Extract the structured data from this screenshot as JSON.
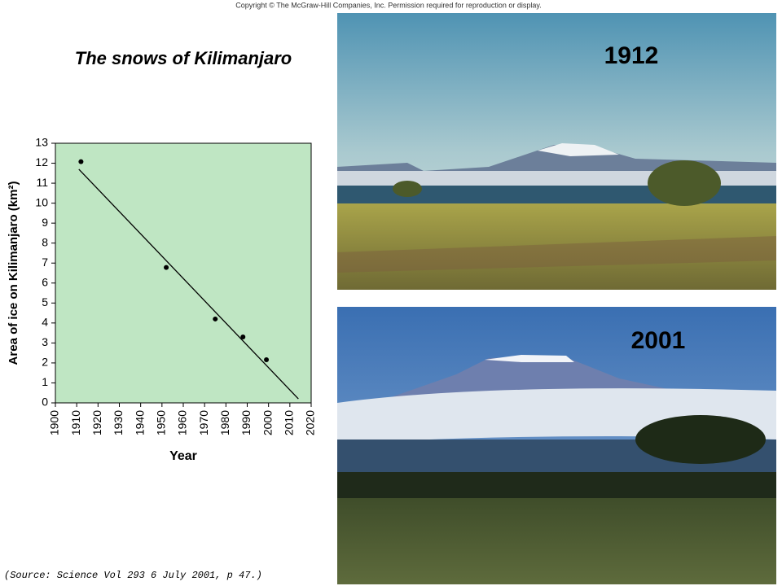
{
  "copyright": "Copyright © The McGraw-Hill Companies, Inc. Permission required for reproduction or display.",
  "slide_title": "The snows of Kilimanjaro",
  "source": "(Source: Science Vol 293 6 July 2001, p 47.)",
  "photos": [
    {
      "label": "1912"
    },
    {
      "label": "2001"
    }
  ],
  "chart_data": {
    "type": "scatter",
    "xlabel": "Year",
    "ylabel": "Area of ice on Kilimanjaro (km²)",
    "x": [
      1912,
      1952,
      1975,
      1988,
      1999
    ],
    "y": [
      12.08,
      6.78,
      4.2,
      3.3,
      2.16
    ],
    "color": "#000000",
    "background": "#bfe6c3",
    "trend_line": {
      "x": [
        1911,
        2014
      ],
      "y": [
        11.7,
        0.2
      ]
    },
    "xlim": [
      1900,
      2020
    ],
    "ylim": [
      0,
      13
    ],
    "xticks": [
      1900,
      1910,
      1920,
      1930,
      1940,
      1950,
      1960,
      1970,
      1980,
      1990,
      2000,
      2010,
      2020
    ],
    "yticks": [
      0,
      1,
      2,
      3,
      4,
      5,
      6,
      7,
      8,
      9,
      10,
      11,
      12,
      13
    ]
  }
}
